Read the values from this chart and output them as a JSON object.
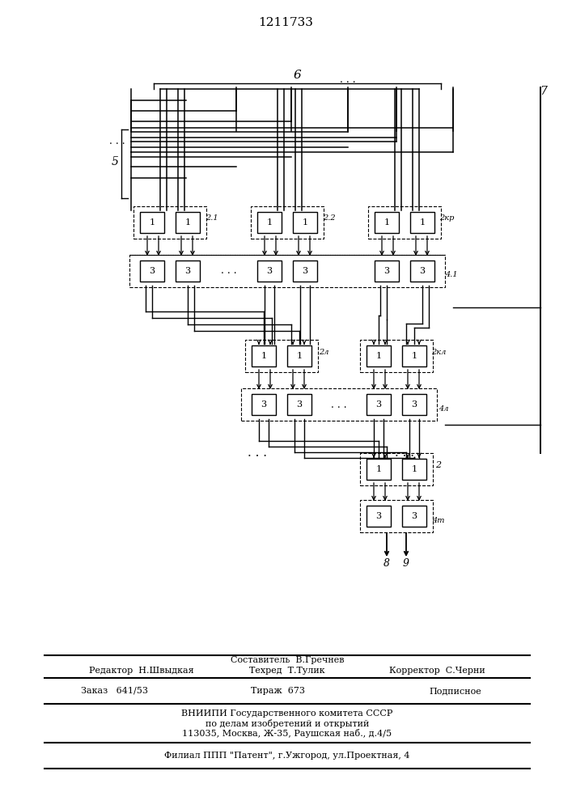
{
  "title": "1211733",
  "bg_color": "#ffffff",
  "label_6": "6",
  "label_7": "7",
  "label_5": "5",
  "label_8": "8",
  "label_9": "9",
  "label_21": "2.1",
  "label_22": "2.2",
  "label_2kp": "2кр",
  "label_2l": "2л",
  "label_2kl": "2кл",
  "label_2m": "2",
  "label_41": "4.1",
  "label_4l": "4л",
  "label_4m": "4m",
  "editor_line": "Редактор  Н.Швыдкая",
  "composer_line": "Составитель  В.Гречнев",
  "techred_line": "Техред  Т.Тулик",
  "corrector_line": "Корректор  С.Черни",
  "order_text": "Заказ   641/53",
  "tirazh_text": "Тираж  673",
  "podpisnoe_text": "Подписное",
  "vniishi_text": "ВНИИПИ Государственного комитета СССР",
  "po_delam_text": "по делам изобретений и открытий",
  "address_text": "113035, Москва, Ж-35, Раушская наб., д.4/5",
  "filial_text": "Филиал ППП \"Патент\", г.Ужгород, ул.Проектная, 4"
}
